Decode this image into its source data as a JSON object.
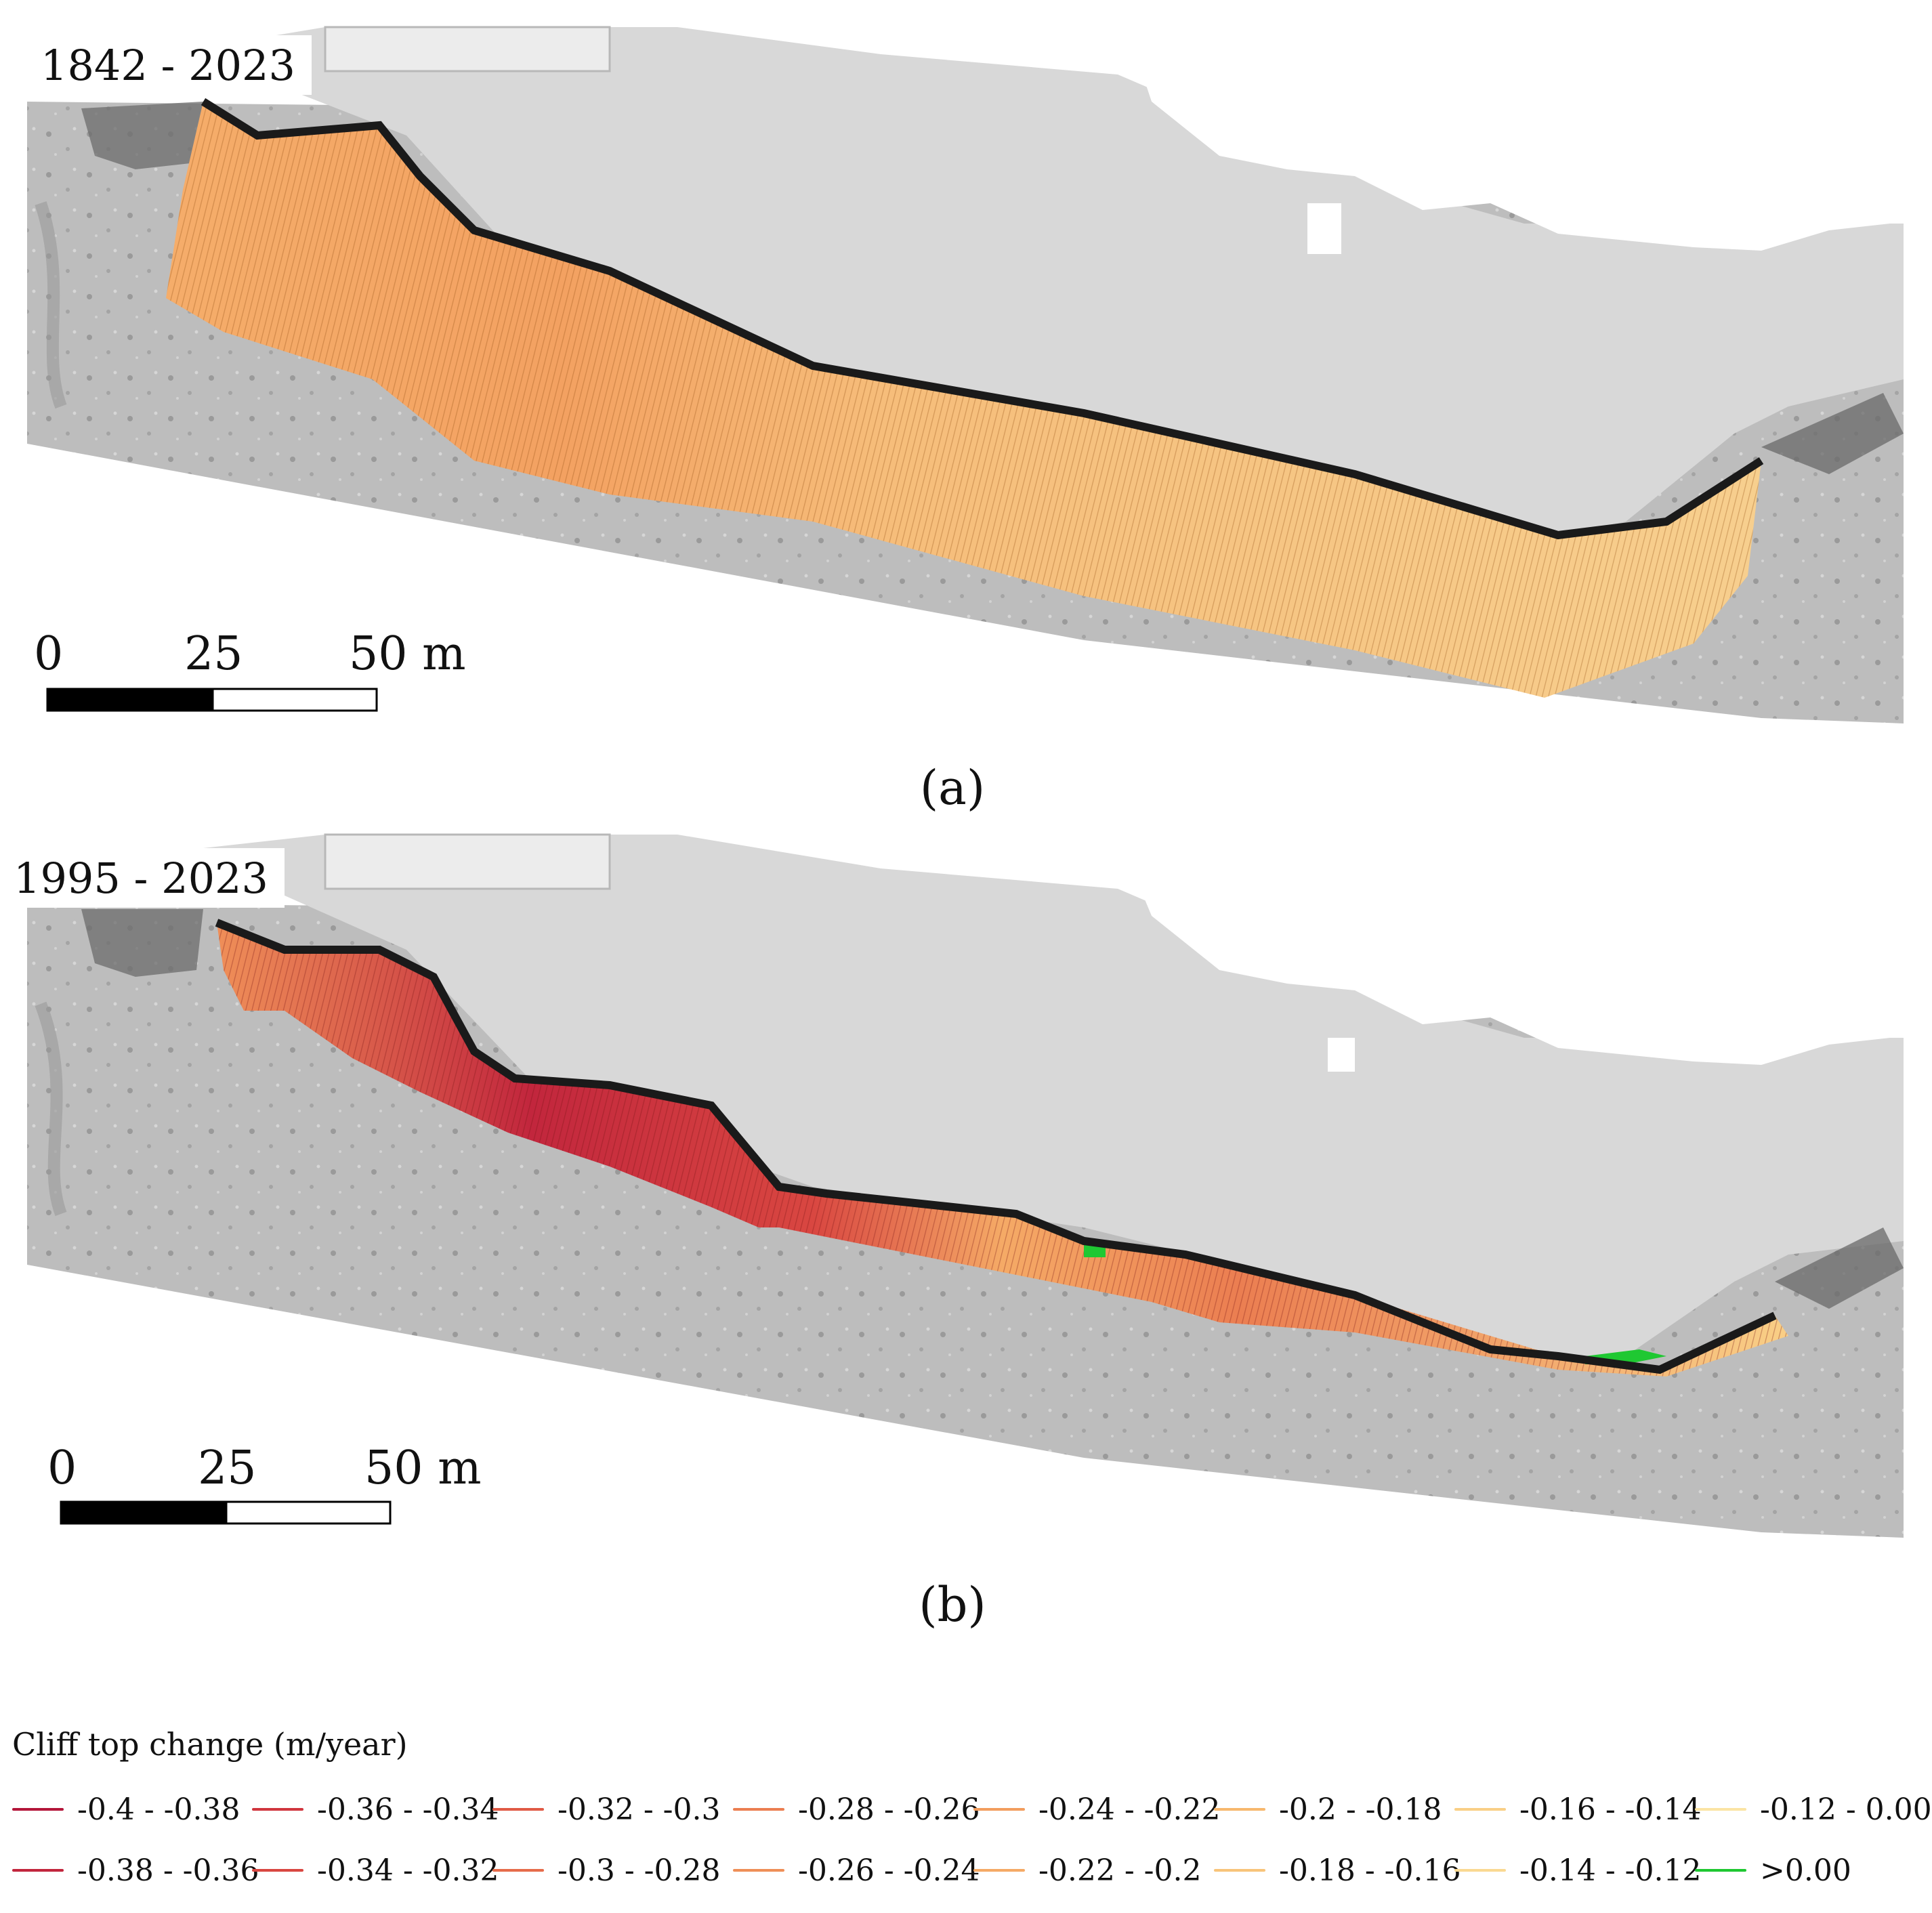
{
  "panels": [
    {
      "period_label": "1842 - 2023",
      "caption": "(a)"
    },
    {
      "period_label": "1995 - 2023",
      "caption": "(b)"
    }
  ],
  "scale_bar": {
    "labels": [
      "0",
      "25",
      "50 m"
    ]
  },
  "legend": {
    "title": "Cliff top change (m/year)",
    "items": [
      {
        "label": "-0.4 - -0.38",
        "color": "#b3163a"
      },
      {
        "label": "-0.38 - -0.36",
        "color": "#c2263d"
      },
      {
        "label": "-0.36 - -0.34",
        "color": "#d0363e"
      },
      {
        "label": "-0.34 - -0.32",
        "color": "#d94741"
      },
      {
        "label": "-0.32 - -0.3",
        "color": "#e05a45"
      },
      {
        "label": "-0.3 - -0.28",
        "color": "#e66c4b"
      },
      {
        "label": "-0.28 - -0.26",
        "color": "#eb7e51"
      },
      {
        "label": "-0.26 - -0.24",
        "color": "#ef8f58"
      },
      {
        "label": "-0.24 - -0.22",
        "color": "#f29d5e"
      },
      {
        "label": "-0.22 - -0.2",
        "color": "#f5aa66"
      },
      {
        "label": "-0.2 - -0.18",
        "color": "#f7b86e"
      },
      {
        "label": "-0.18 - -0.16",
        "color": "#f8c47a"
      },
      {
        "label": "-0.16 - -0.14",
        "color": "#f9cf86"
      },
      {
        "label": "-0.14 - -0.12",
        "color": "#fad992"
      },
      {
        "label": "-0.12 - 0.00",
        "color": "#fbe4a4"
      },
      {
        "label": ">0.00",
        "color": "#1fc832"
      }
    ]
  }
}
